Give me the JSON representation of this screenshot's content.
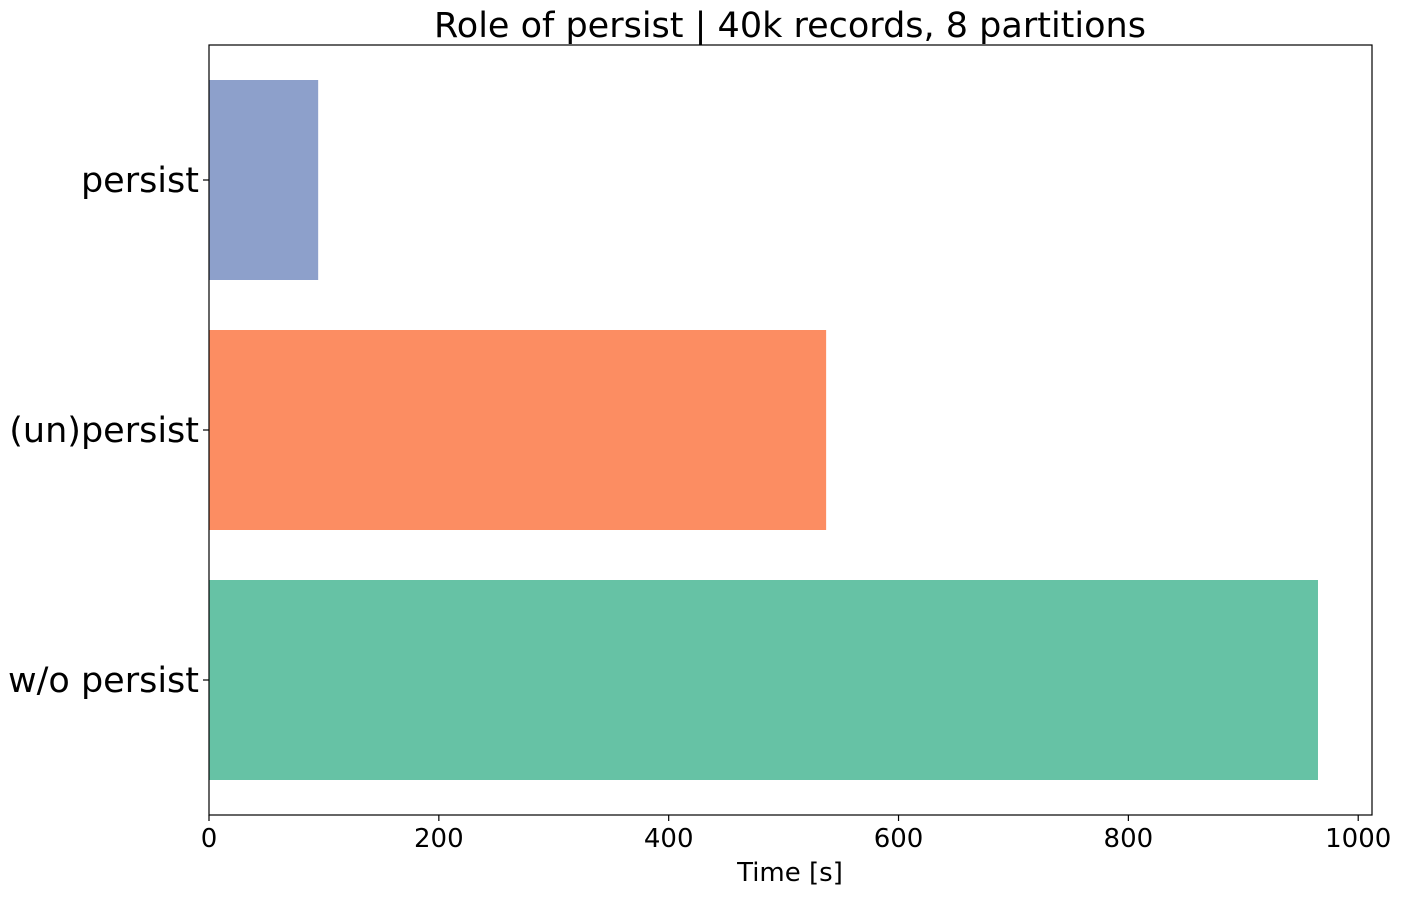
{
  "chart_data": {
    "type": "bar",
    "orientation": "horizontal",
    "title": "Role of persist | 40k records, 8 partitions",
    "xlabel": "Time [s]",
    "ylabel": "",
    "categories": [
      "persist",
      "(un)persist",
      "w/o persist"
    ],
    "values": [
      95,
      537,
      965
    ],
    "colors": [
      "#8da0cb",
      "#fc8d62",
      "#66c2a5"
    ],
    "xlim": [
      0,
      1012
    ],
    "xticks": [
      0,
      200,
      400,
      600,
      800,
      1000
    ],
    "xtick_labels": [
      "0",
      "200",
      "400",
      "600",
      "800",
      "1000"
    ],
    "grid": false,
    "legend": "none"
  }
}
